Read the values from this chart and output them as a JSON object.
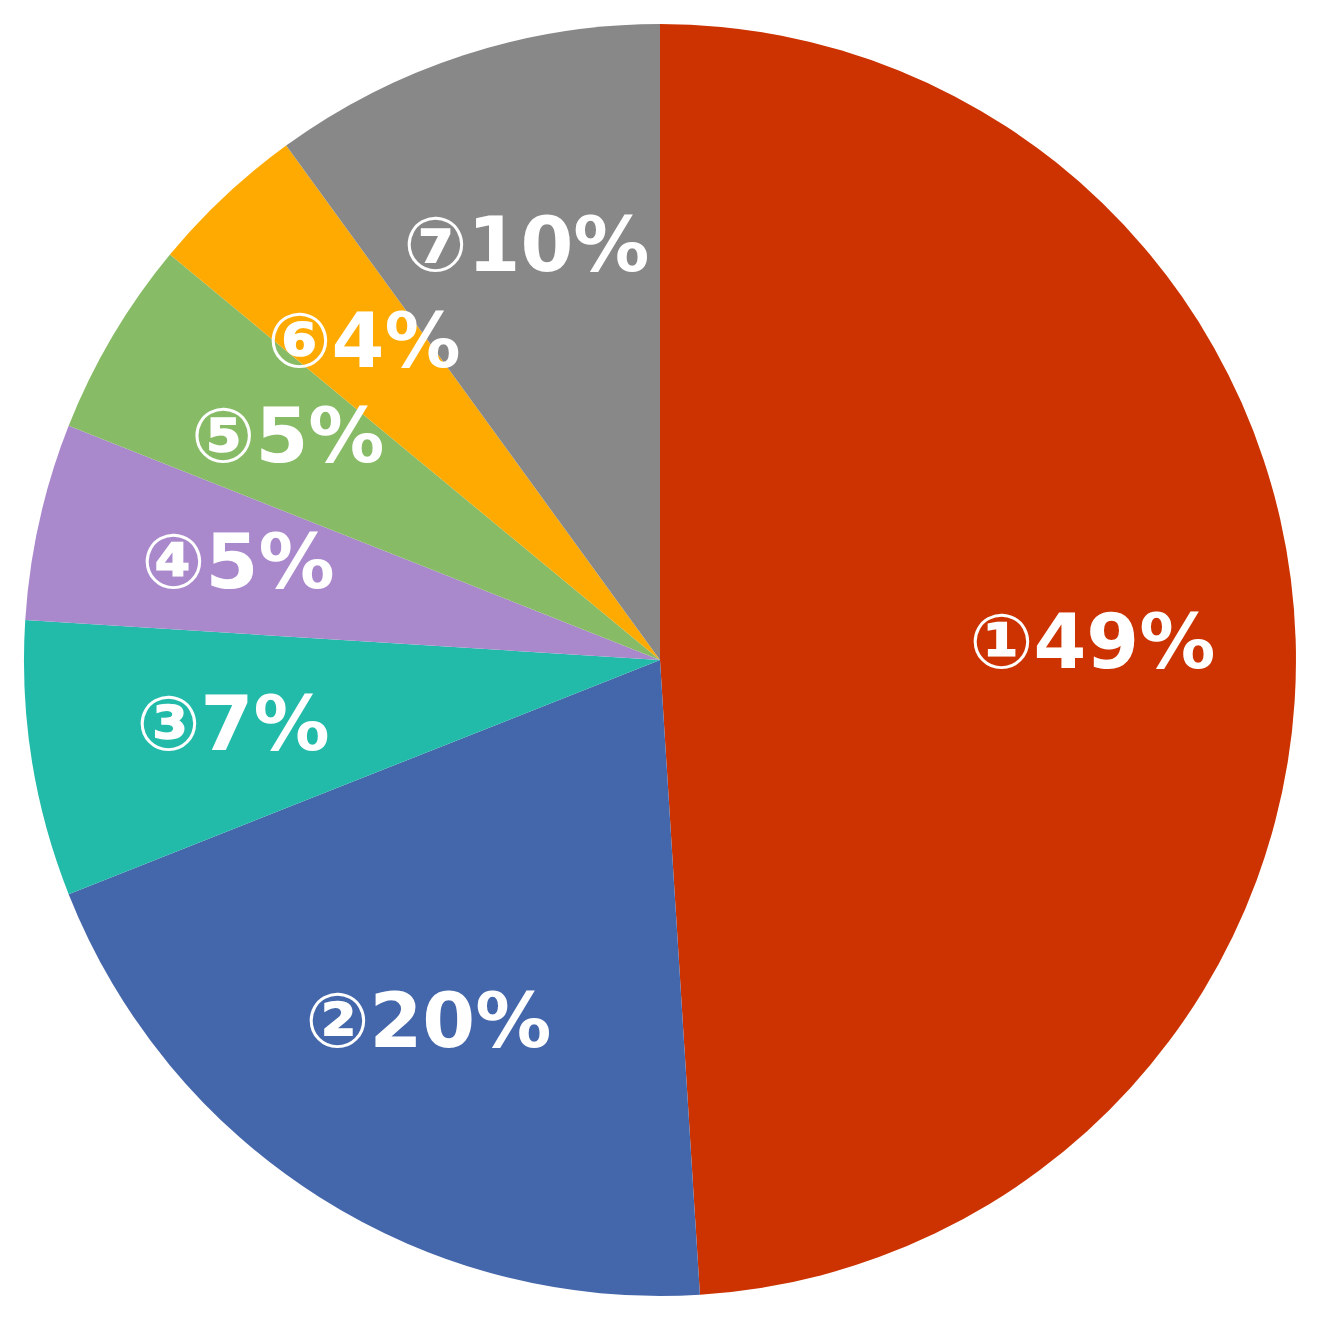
{
  "chart_data": {
    "type": "pie",
    "categories": [
      "①",
      "②",
      "③",
      "④",
      "⑤",
      "⑥",
      "⑦"
    ],
    "values": [
      49,
      20,
      7,
      5,
      5,
      4,
      10
    ],
    "value_labels": [
      "49%",
      "20%",
      "7%",
      "5%",
      "5%",
      "4%",
      "10%"
    ],
    "colors": [
      "#cc3300",
      "#4466aa",
      "#22bbaa",
      "#aa88cc",
      "#88bb66",
      "#ffaa00",
      "#888888"
    ]
  }
}
